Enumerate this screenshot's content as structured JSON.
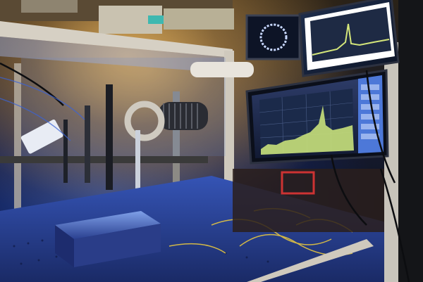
{
  "scene": {
    "description_role": "photograph",
    "palette": {
      "warm_light": "#d8a25a",
      "blue_light": "#3a63d6",
      "table_blue": "#2f4fa8",
      "screen_green": "#c8e07a",
      "screen_bg": "#1b2a4a",
      "panel_blue": "#4d78d8",
      "cable_yellow": "#e6c640",
      "metal": "#9aa3b2"
    }
  }
}
